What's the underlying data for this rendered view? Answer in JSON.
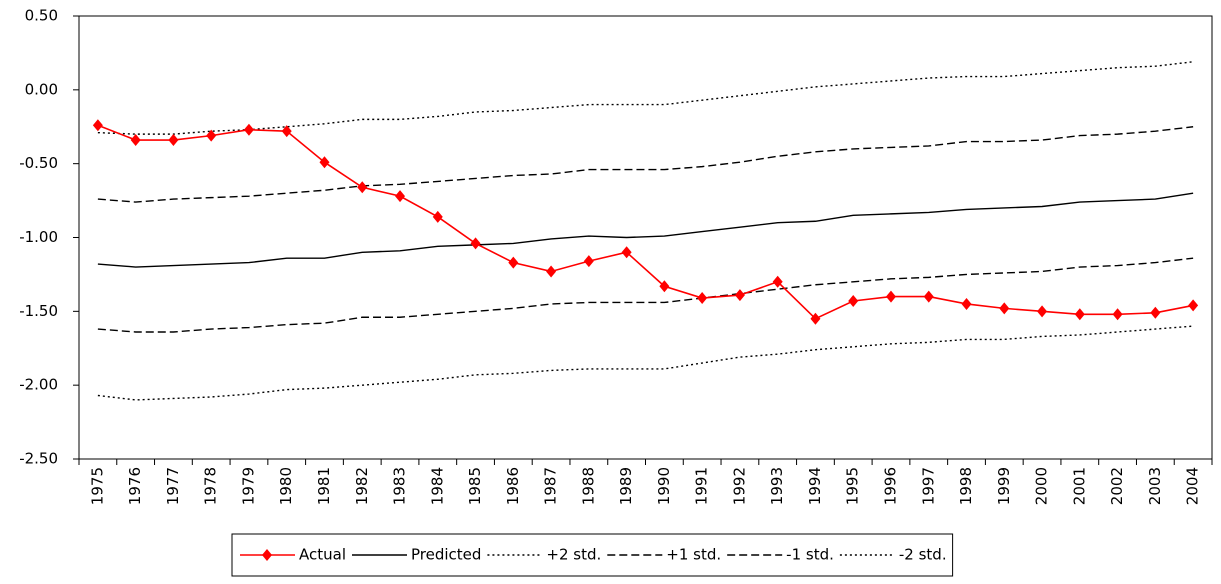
{
  "chart_data": {
    "type": "line",
    "categories": [
      "1975",
      "1976",
      "1977",
      "1978",
      "1979",
      "1980",
      "1981",
      "1982",
      "1983",
      "1984",
      "1985",
      "1986",
      "1987",
      "1988",
      "1989",
      "1990",
      "1991",
      "1992",
      "1993",
      "1994",
      "1995",
      "1996",
      "1997",
      "1998",
      "1999",
      "2000",
      "2001",
      "2002",
      "2003",
      "2004"
    ],
    "ylim": [
      -2.5,
      0.5
    ],
    "yticks": [
      {
        "value": 0.5,
        "label": "0.50"
      },
      {
        "value": 0,
        "label": "0.00"
      },
      {
        "value": -0.5,
        "label": "-0.50"
      },
      {
        "value": -1,
        "label": "-1.00"
      },
      {
        "value": -1.5,
        "label": "-1.50"
      },
      {
        "value": -2,
        "label": "-2.00"
      },
      {
        "value": -2.5,
        "label": "-2.50"
      }
    ],
    "legend": "bottom",
    "series": [
      {
        "name": "Actual",
        "color": "#ff0000",
        "dash": "solid",
        "marker": "diamond",
        "values": [
          -0.24,
          -0.34,
          -0.34,
          -0.31,
          -0.27,
          -0.28,
          -0.49,
          -0.66,
          -0.72,
          -0.86,
          -1.04,
          -1.17,
          -1.23,
          -1.16,
          -1.1,
          -1.33,
          -1.41,
          -1.39,
          -1.3,
          -1.55,
          -1.43,
          -1.4,
          -1.4,
          -1.45,
          -1.48,
          -1.5,
          -1.52,
          -1.52,
          -1.51,
          -1.46
        ]
      },
      {
        "name": "Predicted",
        "color": "#000000",
        "dash": "solid",
        "values": [
          -1.18,
          -1.2,
          -1.19,
          -1.18,
          -1.17,
          -1.14,
          -1.14,
          -1.1,
          -1.09,
          -1.06,
          -1.05,
          -1.04,
          -1.01,
          -0.99,
          -1.0,
          -0.99,
          -0.96,
          -0.93,
          -0.9,
          -0.89,
          -0.85,
          -0.84,
          -0.83,
          -0.81,
          -0.8,
          -0.79,
          -0.76,
          -0.75,
          -0.74,
          -0.7
        ]
      },
      {
        "name": "+2 std.",
        "color": "#000000",
        "dash": "dotted",
        "values": [
          -0.29,
          -0.3,
          -0.3,
          -0.28,
          -0.27,
          -0.25,
          -0.23,
          -0.2,
          -0.2,
          -0.18,
          -0.15,
          -0.14,
          -0.12,
          -0.1,
          -0.1,
          -0.1,
          -0.07,
          -0.04,
          -0.01,
          0.02,
          0.04,
          0.06,
          0.08,
          0.09,
          0.09,
          0.11,
          0.13,
          0.15,
          0.16,
          0.19
        ]
      },
      {
        "name": "+1 std.",
        "color": "#000000",
        "dash": "dashed",
        "values": [
          -0.74,
          -0.76,
          -0.74,
          -0.73,
          -0.72,
          -0.7,
          -0.68,
          -0.65,
          -0.64,
          -0.62,
          -0.6,
          -0.58,
          -0.57,
          -0.54,
          -0.54,
          -0.54,
          -0.52,
          -0.49,
          -0.45,
          -0.42,
          -0.4,
          -0.39,
          -0.38,
          -0.35,
          -0.35,
          -0.34,
          -0.31,
          -0.3,
          -0.28,
          -0.25
        ]
      },
      {
        "name": "-1 std.",
        "color": "#000000",
        "dash": "dashed",
        "values": [
          -1.62,
          -1.64,
          -1.64,
          -1.62,
          -1.61,
          -1.59,
          -1.58,
          -1.54,
          -1.54,
          -1.52,
          -1.5,
          -1.48,
          -1.45,
          -1.44,
          -1.44,
          -1.44,
          -1.41,
          -1.38,
          -1.35,
          -1.32,
          -1.3,
          -1.28,
          -1.27,
          -1.25,
          -1.24,
          -1.23,
          -1.2,
          -1.19,
          -1.17,
          -1.14
        ]
      },
      {
        "name": "-2 std.",
        "color": "#000000",
        "dash": "dotted",
        "values": [
          -2.07,
          -2.1,
          -2.09,
          -2.08,
          -2.06,
          -2.03,
          -2.02,
          -2.0,
          -1.98,
          -1.96,
          -1.93,
          -1.92,
          -1.9,
          -1.89,
          -1.89,
          -1.89,
          -1.85,
          -1.81,
          -1.79,
          -1.76,
          -1.74,
          -1.72,
          -1.71,
          -1.69,
          -1.69,
          -1.67,
          -1.66,
          -1.64,
          -1.62,
          -1.6
        ]
      }
    ]
  }
}
